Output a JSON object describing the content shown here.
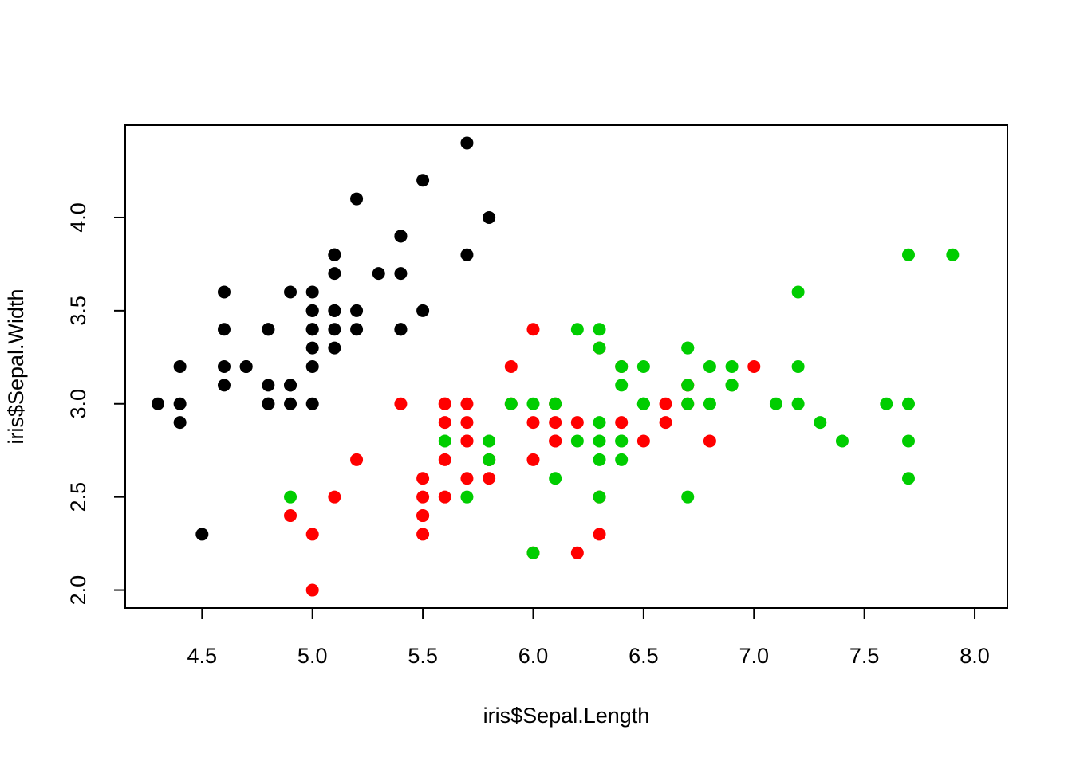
{
  "chart_data": {
    "type": "scatter",
    "xlabel": "iris$Sepal.Length",
    "ylabel": "iris$Sepal.Width",
    "xlim": [
      4.152,
      8.148
    ],
    "ylim": [
      1.904,
      4.496
    ],
    "xticks": [
      4.5,
      {
        "value": 5,
        "label": "5.0"
      },
      5.5,
      {
        "value": 6,
        "label": "6.0"
      },
      6.5,
      {
        "value": 7,
        "label": "7.0"
      },
      7.5,
      {
        "value": 8,
        "label": "8.0"
      }
    ],
    "yticks": [
      {
        "value": 2,
        "label": "2.0"
      },
      2.5,
      {
        "value": 3,
        "label": "3.0"
      },
      3.5,
      {
        "value": 4,
        "label": "4.0"
      }
    ],
    "series": [
      {
        "color": "#000000",
        "x": [
          5.1,
          4.9,
          4.7,
          4.6,
          5.0,
          5.4,
          4.6,
          5.0,
          4.4,
          4.9,
          5.4,
          4.8,
          4.8,
          4.3,
          5.8,
          5.7,
          5.4,
          5.1,
          5.7,
          5.1,
          5.4,
          5.1,
          4.6,
          5.1,
          4.8,
          5.0,
          5.0,
          5.2,
          5.2,
          4.7,
          4.8,
          5.4,
          5.2,
          5.5,
          4.9,
          5.0,
          5.5,
          4.9,
          4.4,
          5.1,
          5.0,
          4.5,
          4.4,
          5.0,
          5.1,
          4.8,
          5.1,
          4.6,
          5.3,
          5.0
        ],
        "y": [
          3.5,
          3.0,
          3.2,
          3.1,
          3.6,
          3.9,
          3.4,
          3.4,
          2.9,
          3.1,
          3.7,
          3.4,
          3.0,
          3.0,
          4.0,
          4.4,
          3.9,
          3.5,
          3.8,
          3.8,
          3.4,
          3.7,
          3.6,
          3.3,
          3.4,
          3.0,
          3.4,
          3.5,
          3.4,
          3.2,
          3.1,
          3.4,
          4.1,
          4.2,
          3.1,
          3.2,
          3.5,
          3.6,
          3.0,
          3.4,
          3.5,
          2.3,
          3.2,
          3.5,
          3.8,
          3.0,
          3.8,
          3.2,
          3.7,
          3.3
        ]
      },
      {
        "color": "#ff0000",
        "x": [
          7.0,
          6.4,
          6.9,
          5.5,
          6.5,
          5.7,
          6.3,
          4.9,
          6.6,
          5.2,
          5.0,
          5.9,
          6.0,
          6.1,
          5.6,
          6.7,
          5.6,
          5.8,
          6.2,
          5.6,
          5.9,
          6.1,
          6.3,
          6.1,
          6.4,
          6.6,
          6.8,
          6.7,
          6.0,
          5.7,
          5.5,
          5.5,
          5.8,
          6.0,
          5.4,
          6.0,
          6.7,
          6.3,
          5.6,
          5.5,
          5.5,
          6.1,
          5.8,
          5.0,
          5.6,
          5.7,
          5.7,
          6.2,
          5.1,
          5.7
        ],
        "y": [
          3.2,
          3.2,
          3.1,
          2.3,
          2.8,
          2.8,
          3.3,
          2.4,
          2.9,
          2.7,
          2.0,
          3.0,
          2.2,
          2.9,
          2.9,
          3.1,
          3.0,
          2.7,
          2.2,
          2.5,
          3.2,
          2.8,
          2.5,
          2.8,
          2.9,
          3.0,
          2.8,
          3.0,
          2.9,
          2.6,
          2.4,
          2.4,
          2.7,
          2.7,
          3.0,
          3.4,
          3.1,
          2.3,
          3.0,
          2.5,
          2.6,
          3.0,
          2.6,
          2.3,
          2.7,
          3.0,
          2.9,
          2.9,
          2.5,
          2.8
        ]
      },
      {
        "color": "#00cd00",
        "x": [
          6.3,
          5.8,
          7.1,
          6.3,
          6.5,
          7.6,
          4.9,
          7.3,
          6.7,
          7.2,
          6.5,
          6.4,
          6.8,
          5.7,
          5.8,
          6.4,
          6.5,
          7.7,
          7.7,
          6.0,
          6.9,
          5.6,
          7.7,
          6.3,
          6.7,
          7.2,
          6.2,
          6.1,
          6.4,
          7.2,
          7.4,
          7.9,
          6.4,
          6.3,
          6.1,
          7.7,
          6.3,
          6.4,
          6.0,
          6.9,
          6.7,
          6.9,
          5.8,
          6.8,
          6.7,
          6.7,
          6.3,
          6.5,
          6.2,
          5.9
        ],
        "y": [
          3.3,
          2.7,
          3.0,
          2.9,
          3.0,
          3.0,
          2.5,
          2.9,
          2.5,
          3.6,
          3.2,
          2.7,
          3.0,
          2.5,
          2.8,
          3.2,
          3.0,
          3.8,
          2.6,
          2.2,
          3.2,
          2.8,
          2.8,
          2.7,
          3.3,
          3.2,
          2.8,
          3.0,
          2.8,
          3.0,
          2.8,
          3.8,
          2.8,
          2.8,
          2.6,
          3.0,
          3.4,
          3.1,
          3.0,
          3.1,
          3.1,
          3.1,
          2.7,
          3.2,
          3.3,
          3.0,
          2.5,
          3.0,
          3.4,
          3.0
        ]
      }
    ]
  }
}
